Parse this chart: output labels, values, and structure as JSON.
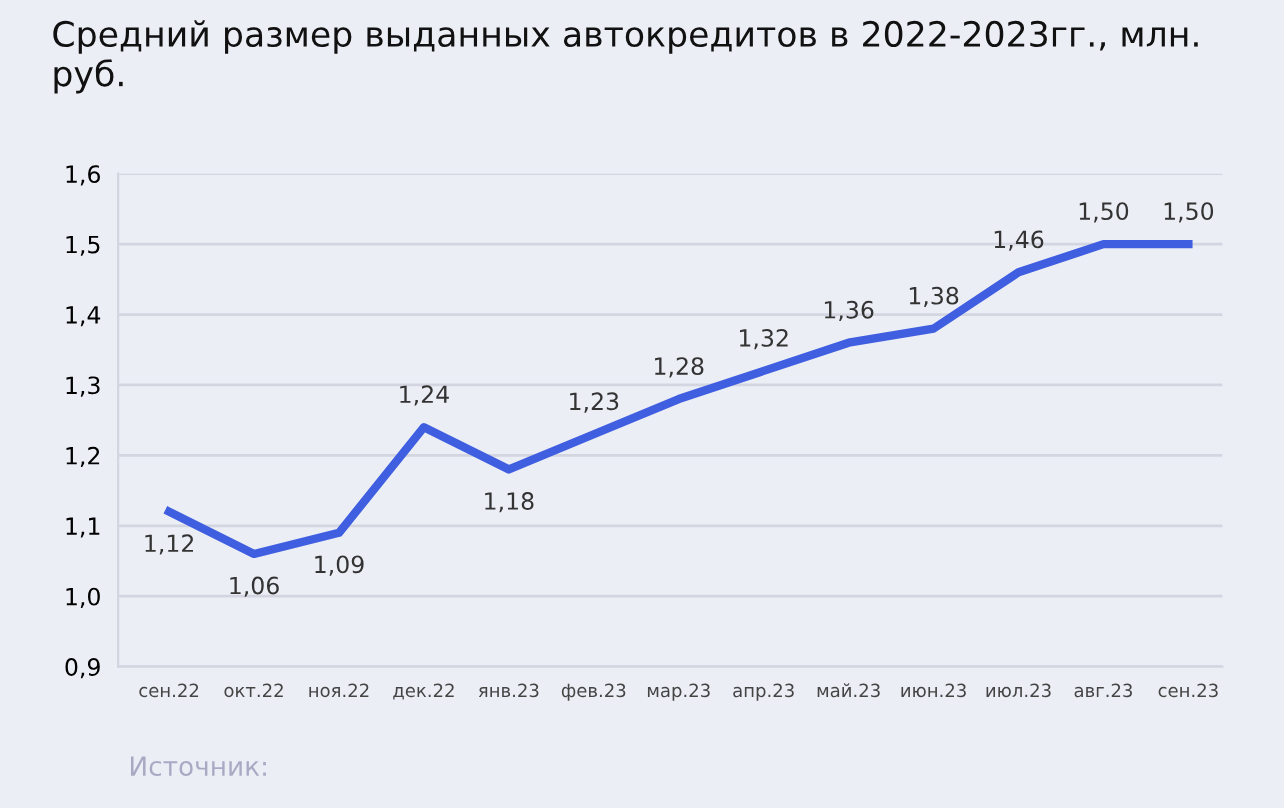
{
  "chart_data": {
    "type": "line",
    "title": "Средний размер выданных автокредитов в 2022-2023гг., млн. руб.",
    "categories": [
      "сен.22",
      "окт.22",
      "ноя.22",
      "дек.22",
      "янв.23",
      "фев.23",
      "мар.23",
      "апр.23",
      "май.23",
      "июн.23",
      "июл.23",
      "авг.23",
      "сен.23"
    ],
    "series": [
      {
        "color": "#3f5ee0",
        "values": [
          1.12,
          1.06,
          1.09,
          1.24,
          1.18,
          1.23,
          1.28,
          1.32,
          1.36,
          1.38,
          1.46,
          1.5,
          1.5
        ],
        "value_labels": [
          "1,12",
          "1,06",
          "1,09",
          "1,24",
          "1,18",
          "1,23",
          "1,28",
          "1,32",
          "1,36",
          "1,38",
          "1,46",
          "1,50",
          "1,50"
        ]
      }
    ],
    "ylim": [
      0.9,
      1.6
    ],
    "yticks": [
      {
        "value": 0.9,
        "label": "0,9"
      },
      {
        "value": 1.0,
        "label": "1,0"
      },
      {
        "value": 1.1,
        "label": "1,1"
      },
      {
        "value": 1.2,
        "label": "1,2"
      },
      {
        "value": 1.3,
        "label": "1,3"
      },
      {
        "value": 1.4,
        "label": "1,4"
      },
      {
        "value": 1.5,
        "label": "1,5"
      },
      {
        "value": 1.6,
        "label": "1,6"
      }
    ],
    "grid": "y",
    "marker": "none",
    "line_style": "solid",
    "annotations": [
      "Источник:"
    ]
  }
}
